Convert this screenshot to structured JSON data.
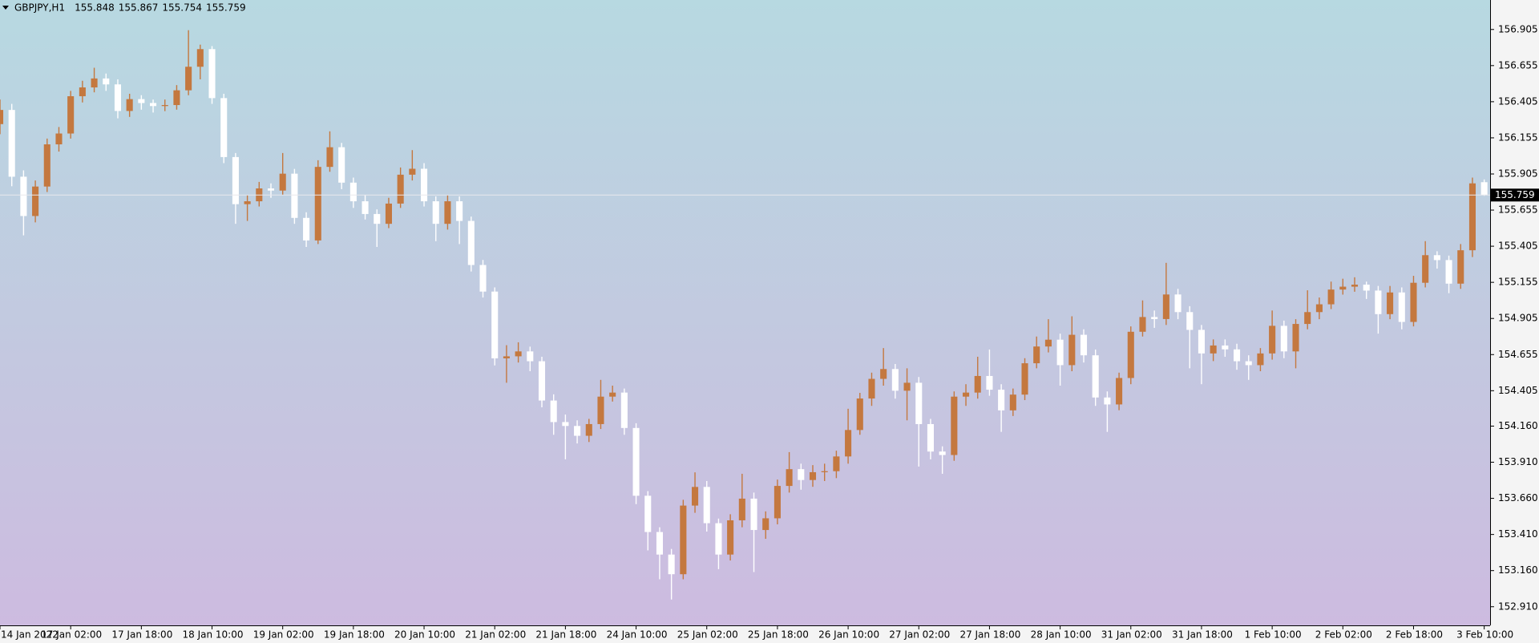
{
  "chart_data": {
    "type": "candlestick",
    "title": "GBPJPY,H1",
    "up_color": "#c4783f",
    "down_color": "#ffffff",
    "xlim": [
      0,
      126.5
    ],
    "ylim": [
      152.781,
      157.109
    ],
    "xticks": [
      {
        "value": 0,
        "label": "14 Jan 2022"
      },
      {
        "value": 6,
        "label": "17 Jan 02:00"
      },
      {
        "value": 12,
        "label": "17 Jan 18:00"
      },
      {
        "value": 18,
        "label": "18 Jan 10:00"
      },
      {
        "value": 24,
        "label": "19 Jan 02:00"
      },
      {
        "value": 30,
        "label": "19 Jan 18:00"
      },
      {
        "value": 36,
        "label": "20 Jan 10:00"
      },
      {
        "value": 42,
        "label": "21 Jan 02:00"
      },
      {
        "value": 48,
        "label": "21 Jan 18:00"
      },
      {
        "value": 54,
        "label": "24 Jan 10:00"
      },
      {
        "value": 60,
        "label": "25 Jan 02:00"
      },
      {
        "value": 66,
        "label": "25 Jan 18:00"
      },
      {
        "value": 72,
        "label": "26 Jan 10:00"
      },
      {
        "value": 78,
        "label": "27 Jan 02:00"
      },
      {
        "value": 84,
        "label": "27 Jan 18:00"
      },
      {
        "value": 90,
        "label": "28 Jan 10:00"
      },
      {
        "value": 96,
        "label": "31 Jan 02:00"
      },
      {
        "value": 102,
        "label": "31 Jan 18:00"
      },
      {
        "value": 108,
        "label": "1 Feb 10:00"
      },
      {
        "value": 114,
        "label": "2 Feb 02:00"
      },
      {
        "value": 120,
        "label": "2 Feb 18:00"
      },
      {
        "value": 126,
        "label": "3 Feb 10:00"
      }
    ],
    "yticks": [
      156.905,
      156.655,
      156.405,
      156.155,
      155.905,
      155.655,
      155.405,
      155.155,
      154.905,
      154.655,
      154.405,
      {
        "value": 154.16,
        "label": "154.160"
      },
      {
        "value": 153.91,
        "label": "153.910"
      },
      {
        "value": 153.66,
        "label": "153.660"
      },
      {
        "value": 153.41,
        "label": "153.410"
      },
      {
        "value": 153.16,
        "label": "153.160"
      },
      {
        "value": 152.91,
        "label": "152.910"
      }
    ],
    "open": [
      156.25,
      156.348,
      155.886,
      155.614,
      155.818,
      156.11,
      156.185,
      156.443,
      156.504,
      156.566,
      156.525,
      156.341,
      156.423,
      156.396,
      156.375,
      156.382,
      156.484,
      156.647,
      156.769,
      156.43,
      156.022,
      155.696,
      155.716,
      155.805,
      155.79,
      155.907,
      155.601,
      155.445,
      155.954,
      156.09,
      155.845,
      155.716,
      155.628,
      155.56,
      155.7,
      155.9,
      155.941,
      155.716,
      155.56,
      155.716,
      155.58,
      155.275,
      155.091,
      154.629,
      154.643,
      154.677,
      154.609,
      154.337,
      154.188,
      154.161,
      154.093,
      154.174,
      154.364,
      154.392,
      154.147,
      153.678,
      153.427,
      153.271,
      153.135,
      153.61,
      153.739,
      153.488,
      153.271,
      153.508,
      153.658,
      153.441,
      153.522,
      153.746,
      153.862,
      153.787,
      153.841,
      153.848,
      153.95,
      154.133,
      154.351,
      154.487,
      154.555,
      154.405,
      154.46,
      154.174,
      153.984,
      153.96,
      154.364,
      154.392,
      154.507,
      154.412,
      154.269,
      154.378,
      154.595,
      154.711,
      154.758,
      154.582,
      154.792,
      154.65,
      154.358,
      154.31,
      154.493,
      154.813,
      154.915,
      154.901,
      155.071,
      154.949,
      154.826,
      154.663,
      154.718,
      154.691,
      154.609,
      154.582,
      154.663,
      154.854,
      154.677,
      154.867,
      154.949,
      155.003,
      155.105,
      155.125,
      155.139,
      155.098,
      154.935,
      155.085,
      154.881,
      155.152,
      155.343,
      155.309,
      155.146,
      155.377,
      155.848
    ],
    "high": [
      156.42,
      156.39,
      155.93,
      155.86,
      156.15,
      156.23,
      156.48,
      156.55,
      156.64,
      156.6,
      156.56,
      156.46,
      156.45,
      156.42,
      156.42,
      156.52,
      156.9,
      156.8,
      156.79,
      156.46,
      156.05,
      155.76,
      155.85,
      155.84,
      156.05,
      155.94,
      155.64,
      156.0,
      156.2,
      156.12,
      155.88,
      155.76,
      155.66,
      155.74,
      155.95,
      156.07,
      155.98,
      155.75,
      155.76,
      155.75,
      155.61,
      155.31,
      155.12,
      154.72,
      154.74,
      154.71,
      154.64,
      154.38,
      154.24,
      154.2,
      154.21,
      154.48,
      154.44,
      154.42,
      154.18,
      153.71,
      153.46,
      153.31,
      153.65,
      153.84,
      153.78,
      153.52,
      153.55,
      153.83,
      153.7,
      153.57,
      153.79,
      153.98,
      153.9,
      153.89,
      153.9,
      153.99,
      154.28,
      154.39,
      154.53,
      154.7,
      154.59,
      154.56,
      154.5,
      154.21,
      154.02,
      154.4,
      154.45,
      154.64,
      154.69,
      154.45,
      154.42,
      154.63,
      154.78,
      154.9,
      154.8,
      154.92,
      154.83,
      154.69,
      154.4,
      154.53,
      154.85,
      155.03,
      154.96,
      155.29,
      155.11,
      154.99,
      154.86,
      154.76,
      154.76,
      154.73,
      154.65,
      154.7,
      154.96,
      154.89,
      154.9,
      155.1,
      155.05,
      155.16,
      155.18,
      155.19,
      155.16,
      155.13,
      155.13,
      155.12,
      155.2,
      155.44,
      155.37,
      155.34,
      155.42,
      155.88,
      155.867
    ],
    "low": [
      156.18,
      155.82,
      155.48,
      155.57,
      155.78,
      156.06,
      156.15,
      156.4,
      156.47,
      156.48,
      156.29,
      156.3,
      156.35,
      156.33,
      156.34,
      156.35,
      156.45,
      156.56,
      156.39,
      155.98,
      155.56,
      155.58,
      155.68,
      155.74,
      155.76,
      155.56,
      155.4,
      155.42,
      155.92,
      155.8,
      155.67,
      155.59,
      155.4,
      155.53,
      155.67,
      155.86,
      155.68,
      155.44,
      155.52,
      155.42,
      155.23,
      155.05,
      154.58,
      154.46,
      154.6,
      154.54,
      154.29,
      154.1,
      153.93,
      154.04,
      154.05,
      154.14,
      154.33,
      154.1,
      153.62,
      153.3,
      153.1,
      152.96,
      153.1,
      153.56,
      153.43,
      153.17,
      153.23,
      153.46,
      153.15,
      153.38,
      153.48,
      153.7,
      153.72,
      153.74,
      153.78,
      153.8,
      153.9,
      154.1,
      154.3,
      154.44,
      154.35,
      154.2,
      153.88,
      153.93,
      153.83,
      153.92,
      154.3,
      154.35,
      154.37,
      154.12,
      154.23,
      154.34,
      154.56,
      154.67,
      154.44,
      154.54,
      154.6,
      154.3,
      154.12,
      154.27,
      154.45,
      154.78,
      154.84,
      154.86,
      154.9,
      154.56,
      154.45,
      154.61,
      154.64,
      154.55,
      154.48,
      154.54,
      154.62,
      154.63,
      154.56,
      154.83,
      154.9,
      154.97,
      155.07,
      155.09,
      155.04,
      154.8,
      154.9,
      154.83,
      154.85,
      155.12,
      155.25,
      155.08,
      155.11,
      155.33,
      155.754
    ],
    "close": [
      156.348,
      155.886,
      155.614,
      155.818,
      156.11,
      156.185,
      156.443,
      156.504,
      156.566,
      156.525,
      156.341,
      156.423,
      156.396,
      156.375,
      156.382,
      156.484,
      156.647,
      156.769,
      156.43,
      156.022,
      155.696,
      155.716,
      155.805,
      155.79,
      155.907,
      155.601,
      155.445,
      155.954,
      156.09,
      155.845,
      155.716,
      155.628,
      155.56,
      155.7,
      155.9,
      155.941,
      155.716,
      155.56,
      155.716,
      155.58,
      155.275,
      155.091,
      154.629,
      154.643,
      154.677,
      154.609,
      154.337,
      154.188,
      154.161,
      154.093,
      154.174,
      154.364,
      154.392,
      154.147,
      153.678,
      153.427,
      153.271,
      153.135,
      153.61,
      153.739,
      153.488,
      153.271,
      153.508,
      153.658,
      153.441,
      153.522,
      153.746,
      153.862,
      153.787,
      153.841,
      153.848,
      153.95,
      154.133,
      154.351,
      154.487,
      154.555,
      154.405,
      154.46,
      154.174,
      153.984,
      153.96,
      154.364,
      154.392,
      154.507,
      154.412,
      154.269,
      154.378,
      154.595,
      154.711,
      154.758,
      154.582,
      154.792,
      154.65,
      154.358,
      154.31,
      154.493,
      154.813,
      154.915,
      154.901,
      155.071,
      154.949,
      154.826,
      154.663,
      154.718,
      154.691,
      154.609,
      154.582,
      154.663,
      154.854,
      154.677,
      154.867,
      154.949,
      155.003,
      155.105,
      155.125,
      155.139,
      155.098,
      154.935,
      155.085,
      154.881,
      155.152,
      155.343,
      155.309,
      155.146,
      155.377,
      155.84,
      155.759
    ]
  }
}
